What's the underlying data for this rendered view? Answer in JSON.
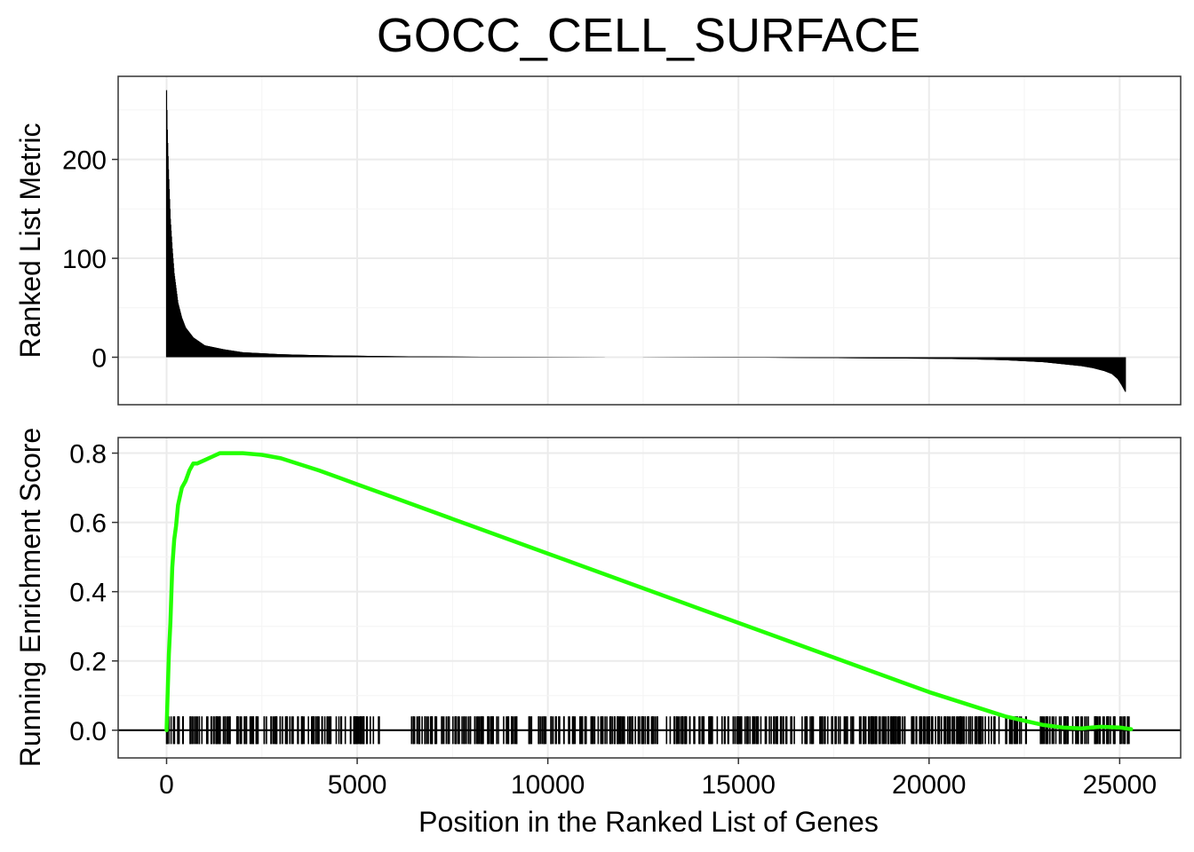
{
  "chart_data": [
    {
      "type": "bar",
      "panel": "top",
      "title": "GOCC_CELL_SURFACE",
      "ylabel": "Ranked List Metric",
      "xlim": [
        -1270,
        26600
      ],
      "ylim": [
        -48,
        284
      ],
      "grid": true,
      "xticks": [
        0,
        5000,
        10000,
        15000,
        20000,
        25000
      ],
      "yticks": [
        0,
        100,
        200
      ],
      "ytick_labels": [
        "0",
        "100",
        "200"
      ],
      "ranked_metric_profile": {
        "x": [
          0,
          20,
          50,
          100,
          150,
          200,
          300,
          400,
          500,
          700,
          1000,
          1500,
          2000,
          3000,
          4000,
          5000,
          6000,
          8000,
          10000,
          12000,
          14000,
          16000,
          18000,
          20000,
          21000,
          22000,
          22500,
          23000,
          23500,
          24000,
          24300,
          24600,
          24800,
          24950,
          25050,
          25150
        ],
        "y": [
          270,
          230,
          190,
          140,
          110,
          85,
          55,
          40,
          30,
          20,
          12,
          8,
          5,
          3,
          2,
          1.5,
          1,
          0.5,
          0.2,
          0,
          -0.2,
          -0.5,
          -1,
          -1.5,
          -2,
          -3,
          -4,
          -5,
          -7,
          -9,
          -11,
          -14,
          -17,
          -22,
          -28,
          -35
        ]
      }
    },
    {
      "type": "line",
      "panel": "bottom",
      "xlabel": "Position in the Ranked List of Genes",
      "ylabel": "Running Enrichment Score",
      "xlim": [
        -1270,
        26600
      ],
      "ylim": [
        -0.08,
        0.845
      ],
      "grid": true,
      "xticks": [
        0,
        5000,
        10000,
        15000,
        20000,
        25000
      ],
      "xtick_labels": [
        "0",
        "5000",
        "10000",
        "15000",
        "20000",
        "25000"
      ],
      "yticks": [
        0,
        0.2,
        0.4,
        0.6,
        0.8
      ],
      "ytick_labels": [
        "0.0",
        "0.2",
        "0.4",
        "0.6",
        "0.8"
      ],
      "series": [
        {
          "color": "#22ff00",
          "x": [
            0,
            20,
            60,
            100,
            150,
            200,
            250,
            300,
            400,
            500,
            600,
            700,
            800,
            1000,
            1200,
            1400,
            1600,
            2000,
            2500,
            3000,
            4000,
            5000,
            6000,
            8000,
            10000,
            12000,
            14000,
            16000,
            18000,
            20000,
            22000,
            23000,
            23500,
            24000,
            24500,
            25000,
            25300
          ],
          "y": [
            0,
            0.08,
            0.22,
            0.31,
            0.47,
            0.55,
            0.59,
            0.65,
            0.7,
            0.72,
            0.75,
            0.77,
            0.77,
            0.78,
            0.79,
            0.8,
            0.8,
            0.8,
            0.795,
            0.785,
            0.75,
            0.71,
            0.67,
            0.59,
            0.51,
            0.43,
            0.35,
            0.27,
            0.19,
            0.11,
            0.04,
            0.015,
            0.008,
            0.005,
            0.01,
            0.008,
            0.003
          ]
        }
      ],
      "gene_hits": {
        "dense_ranges": [
          [
            0,
            5600
          ],
          [
            6400,
            9200
          ],
          [
            9500,
            12900
          ],
          [
            13100,
            22600
          ],
          [
            22900,
            25250
          ]
        ],
        "density_per_1000": 28,
        "tick_top": 0.04,
        "tick_bottom": -0.04
      }
    }
  ]
}
